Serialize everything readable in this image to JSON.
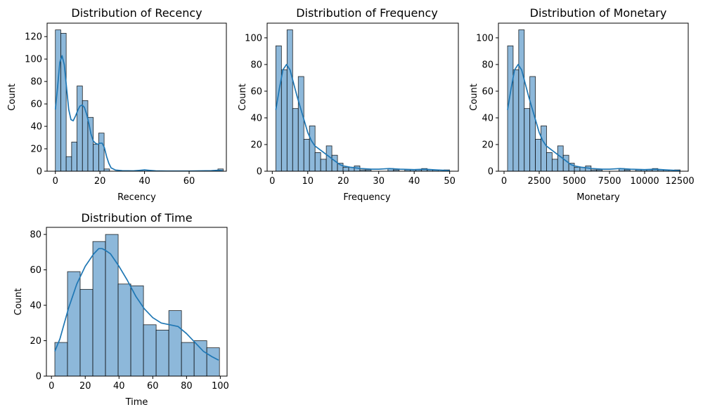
{
  "figure": {
    "background": "#ffffff"
  },
  "style": {
    "bar_fill": "#8db8da",
    "bar_edge": "#000000",
    "kde_color": "#1f77b4"
  },
  "chart_data": [
    {
      "type": "histogram",
      "title": "Distribution of Recency",
      "xlabel": "Recency",
      "ylabel": "Count",
      "xlim": [
        -3.7,
        76.7
      ],
      "ylim": [
        0,
        132
      ],
      "xticks": [
        0,
        20,
        40,
        60
      ],
      "yticks": [
        0,
        20,
        40,
        60,
        80,
        100,
        120
      ],
      "bins": {
        "edges": [
          0,
          2.43,
          4.86,
          7.29,
          9.72,
          12.15,
          14.58,
          17.01,
          19.44,
          21.87,
          24.3,
          26.73,
          29.16,
          31.59,
          34.02,
          36.45,
          38.88,
          41.31,
          43.74,
          46.17,
          48.6,
          51.03,
          53.46,
          55.89,
          58.32,
          60.75,
          63.18,
          65.61,
          68.04,
          70.47,
          72.9,
          75.33
        ],
        "counts": [
          126,
          123,
          13,
          26,
          76,
          63,
          48,
          24,
          34,
          2,
          0,
          0,
          0,
          0,
          0,
          0,
          1,
          0,
          0,
          0,
          0,
          0,
          0,
          0,
          0,
          0,
          0,
          0,
          0,
          0,
          2
        ]
      },
      "kde": {
        "x": [
          0,
          1,
          2,
          3,
          4,
          5,
          6,
          7,
          8,
          9,
          10,
          11,
          12,
          13,
          14,
          15,
          16,
          17,
          18,
          19,
          20,
          21,
          22,
          23,
          24,
          25,
          27,
          30,
          35,
          38,
          40,
          42,
          45,
          50,
          60,
          70,
          73,
          75
        ],
        "y": [
          55,
          75,
          97,
          103,
          95,
          75,
          55,
          46,
          45,
          49,
          54,
          58,
          59,
          57,
          51,
          43,
          33,
          27,
          25,
          24,
          25,
          25,
          21,
          13,
          7,
          3,
          1,
          0.5,
          0.3,
          0.8,
          1.2,
          0.8,
          0.3,
          0.2,
          0.2,
          0.5,
          0.9,
          0.4
        ]
      }
    },
    {
      "type": "histogram",
      "title": "Distribution of Frequency",
      "xlabel": "Frequency",
      "ylabel": "Count",
      "xlim": [
        -1.45,
        52.45
      ],
      "ylim": [
        0,
        111
      ],
      "xticks": [
        0,
        10,
        20,
        30,
        40,
        50
      ],
      "yticks": [
        0,
        20,
        40,
        60,
        80,
        100
      ],
      "bins": {
        "edges": [
          1,
          2.58,
          4.16,
          5.74,
          7.32,
          8.9,
          10.48,
          12.06,
          13.64,
          15.22,
          16.8,
          18.38,
          19.96,
          21.54,
          23.12,
          24.7,
          26.28,
          27.86,
          29.44,
          31.02,
          32.6,
          34.18,
          35.76,
          37.34,
          38.92,
          40.5,
          42.08,
          43.66,
          45.24,
          46.82,
          48.4,
          49.98
        ],
        "counts": [
          94,
          76,
          106,
          47,
          71,
          24,
          34,
          14,
          9,
          19,
          12,
          6,
          3,
          3,
          4,
          1,
          1,
          0,
          0,
          0,
          2,
          1,
          0,
          1,
          1,
          1,
          2,
          1,
          1,
          0,
          1
        ]
      },
      "kde": {
        "x": [
          1,
          2,
          3,
          4,
          5,
          6,
          7,
          8,
          9,
          10,
          11,
          12,
          13,
          14,
          15,
          16,
          17,
          18,
          19,
          20,
          22,
          25,
          28,
          30,
          33,
          36,
          40,
          43,
          46,
          50
        ],
        "y": [
          46,
          62,
          76,
          80,
          76,
          66,
          56,
          47,
          38,
          29,
          23,
          19,
          17,
          15,
          13,
          11,
          9,
          7,
          5,
          4,
          3,
          2,
          1.5,
          1.5,
          2,
          1.5,
          1.2,
          1.5,
          1,
          0.5
        ]
      }
    },
    {
      "type": "histogram",
      "title": "Distribution of Monetary",
      "xlabel": "Monetary",
      "ylabel": "Count",
      "xlim": [
        -400,
        13100
      ],
      "ylim": [
        0,
        111
      ],
      "xticks": [
        0,
        2500,
        5000,
        7500,
        10000,
        12500
      ],
      "yticks": [
        0,
        20,
        40,
        60,
        80,
        100
      ],
      "bins": {
        "edges": [
          250,
          646,
          1042,
          1438,
          1834,
          2230,
          2626,
          3022,
          3418,
          3814,
          4210,
          4606,
          5002,
          5398,
          5794,
          6190,
          6586,
          6982,
          7378,
          7774,
          8170,
          8566,
          8962,
          9358,
          9754,
          10150,
          10546,
          10942,
          11338,
          11734,
          12130,
          12526
        ],
        "counts": [
          94,
          76,
          106,
          47,
          71,
          24,
          34,
          14,
          9,
          19,
          12,
          6,
          3,
          3,
          4,
          1,
          1,
          0,
          0,
          0,
          2,
          1,
          0,
          1,
          1,
          1,
          2,
          1,
          1,
          0,
          1
        ]
      },
      "kde": {
        "x": [
          250,
          500,
          750,
          1000,
          1250,
          1500,
          1750,
          2000,
          2250,
          2500,
          2750,
          3000,
          3250,
          3500,
          3750,
          4000,
          4250,
          4500,
          4750,
          5000,
          5500,
          6250,
          7000,
          7500,
          8250,
          9000,
          10000,
          10750,
          11500,
          12500
        ],
        "y": [
          46,
          62,
          76,
          80,
          76,
          66,
          56,
          47,
          38,
          29,
          23,
          19,
          17,
          15,
          13,
          11,
          9,
          7,
          5,
          4,
          3,
          2,
          1.5,
          1.5,
          2,
          1.5,
          1.2,
          1.5,
          1,
          0.5
        ]
      }
    },
    {
      "type": "histogram",
      "title": "Distribution of Time",
      "xlabel": "Time",
      "ylabel": "Count",
      "xlim": [
        -3,
        104
      ],
      "ylim": [
        0,
        84
      ],
      "xticks": [
        0,
        20,
        40,
        60,
        80,
        100
      ],
      "yticks": [
        0,
        20,
        40,
        60,
        80
      ],
      "bins": {
        "edges": [
          2,
          9.5,
          17,
          24.5,
          32,
          39.5,
          47,
          54.5,
          62,
          69.5,
          77,
          84.5,
          92,
          99.5
        ],
        "counts": [
          19,
          59,
          49,
          76,
          80,
          52,
          51,
          29,
          26,
          37,
          19,
          20,
          16
        ]
      },
      "kde": {
        "x": [
          2,
          5,
          10,
          15,
          20,
          25,
          28,
          30,
          32,
          35,
          40,
          45,
          50,
          55,
          60,
          65,
          70,
          75,
          80,
          85,
          90,
          95,
          99
        ],
        "y": [
          14,
          21,
          38,
          52,
          62,
          69,
          72,
          72,
          71,
          69,
          62,
          54,
          45,
          38,
          33,
          30,
          29,
          28,
          24,
          19,
          14,
          11,
          9
        ]
      }
    }
  ]
}
